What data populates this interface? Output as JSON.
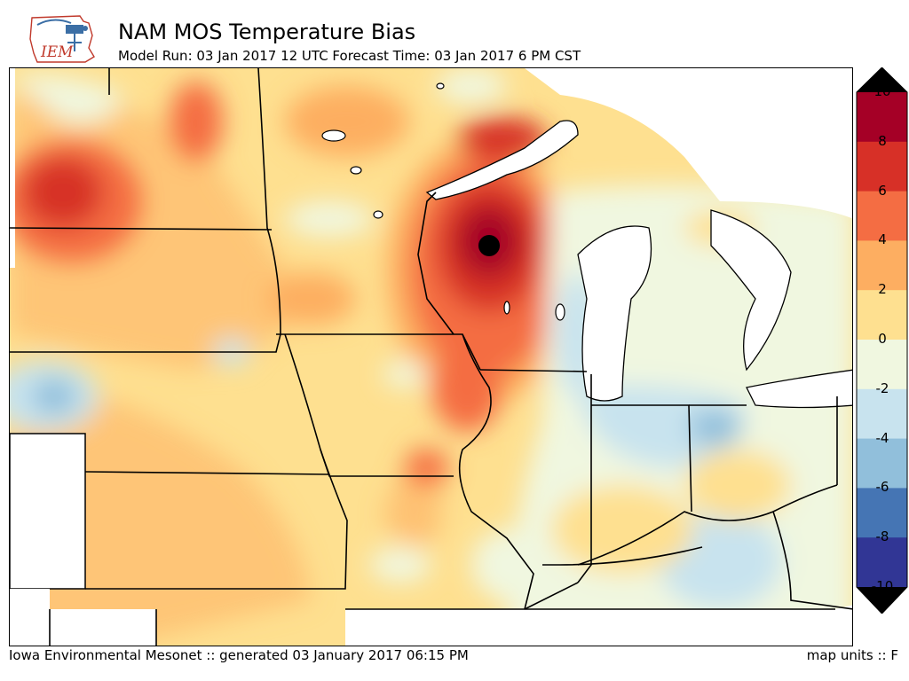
{
  "header": {
    "title": "NAM MOS Temperature Bias",
    "subtitle": "Model Run: 03 Jan 2017 12 UTC Forecast Time: 03 Jan 2017 6 PM CST",
    "logo_text": "IEM"
  },
  "colorbar": {
    "ticks": [
      "10",
      "8",
      "6",
      "4",
      "2",
      "0",
      "-2",
      "-4",
      "-6",
      "-8",
      "-10"
    ],
    "colors": [
      "#a50026",
      "#d73027",
      "#f46d43",
      "#fdae61",
      "#fee090",
      "#f0f7e0",
      "#c8e3ee",
      "#91bfdb",
      "#4575b4",
      "#313695"
    ]
  },
  "footer": {
    "left": "Iowa Environmental Mesonet :: generated 03 January 2017 06:15 PM",
    "right": "map units :: F"
  }
}
